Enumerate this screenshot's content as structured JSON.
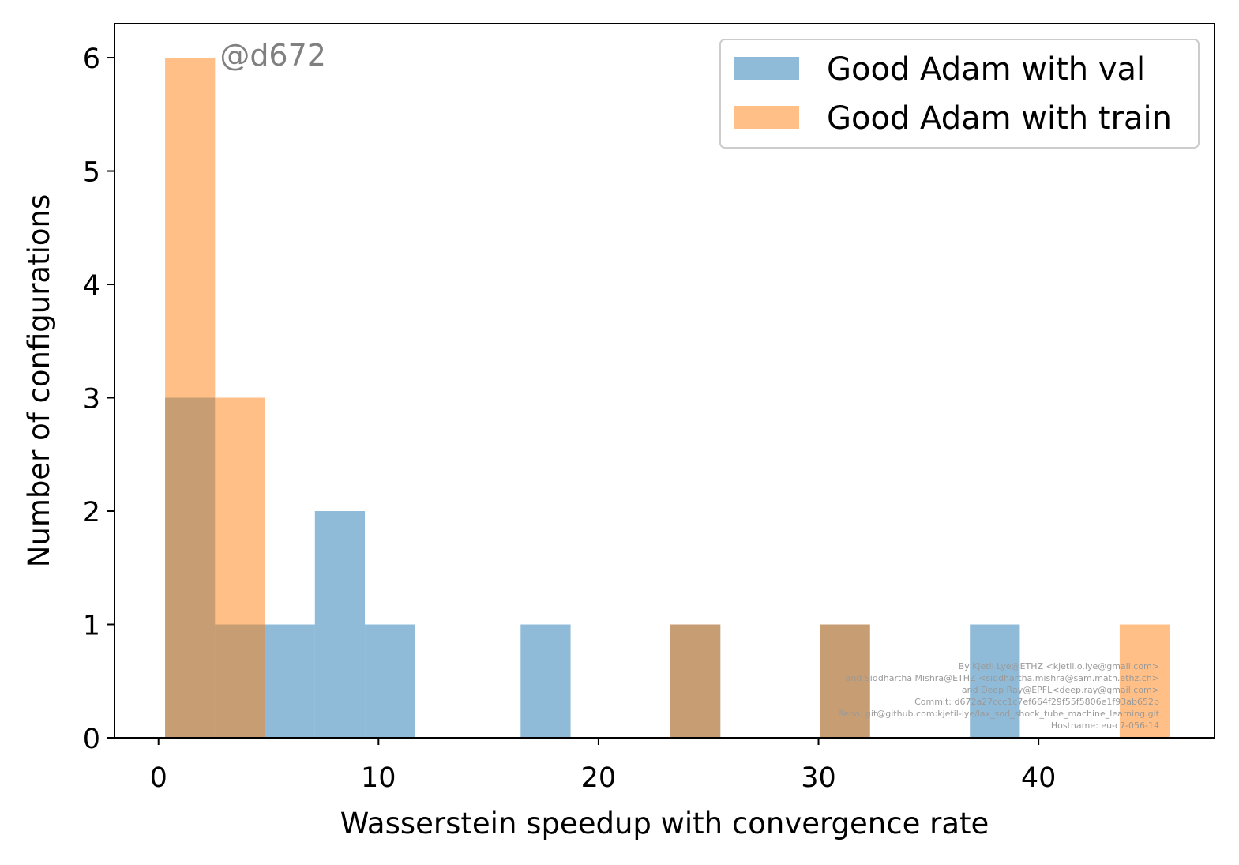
{
  "chart_data": {
    "type": "bar",
    "title": "",
    "xlabel": "Wasserstein speedup with convergence rate",
    "ylabel": "Number of configurations",
    "xlim": [
      -2,
      48
    ],
    "ylim": [
      0,
      6.3
    ],
    "xticks": [
      0,
      10,
      20,
      30,
      40
    ],
    "yticks": [
      0,
      1,
      2,
      3,
      4,
      5,
      6
    ],
    "grid": false,
    "legend_position": "top-right",
    "series": [
      {
        "name": "Good Adam with val",
        "color": "#1f77b4",
        "opacity": 0.5,
        "bins": [
          {
            "x0": 0.3,
            "x1": 2.57,
            "count": 3
          },
          {
            "x0": 2.57,
            "x1": 4.84,
            "count": 1
          },
          {
            "x0": 4.84,
            "x1": 7.11,
            "count": 1
          },
          {
            "x0": 7.11,
            "x1": 9.38,
            "count": 2
          },
          {
            "x0": 9.38,
            "x1": 11.65,
            "count": 1
          },
          {
            "x0": 16.46,
            "x1": 18.73,
            "count": 1
          },
          {
            "x0": 23.27,
            "x1": 25.54,
            "count": 1
          },
          {
            "x0": 30.07,
            "x1": 32.34,
            "count": 1
          },
          {
            "x0": 36.88,
            "x1": 39.15,
            "count": 1
          }
        ]
      },
      {
        "name": "Good Adam with train",
        "color": "#ff7f0e",
        "opacity": 0.5,
        "bins": [
          {
            "x0": 0.3,
            "x1": 2.57,
            "count": 6
          },
          {
            "x0": 2.57,
            "x1": 4.84,
            "count": 3
          },
          {
            "x0": 23.27,
            "x1": 25.54,
            "count": 1
          },
          {
            "x0": 30.07,
            "x1": 32.34,
            "count": 1
          },
          {
            "x0": 43.69,
            "x1": 45.96,
            "count": 1
          }
        ]
      }
    ],
    "annotation_tag": "@d672",
    "credits": [
      "By Kjetil Lye@ETHZ <kjetil.o.lye@gmail.com>",
      "and Siddhartha Mishra@ETHZ <siddhartha.mishra@sam.math.ethz.ch>",
      "and Deep Ray@EPFL<deep.ray@gmail.com>",
      "Commit: d672a27ccc1c7ef664f29f55f5806e1f93ab652b",
      "Repo: git@github.com:kjetil-lye/lax_sod_shock_tube_machine_learning.git",
      "Hostname: eu-c7-056-14"
    ]
  }
}
